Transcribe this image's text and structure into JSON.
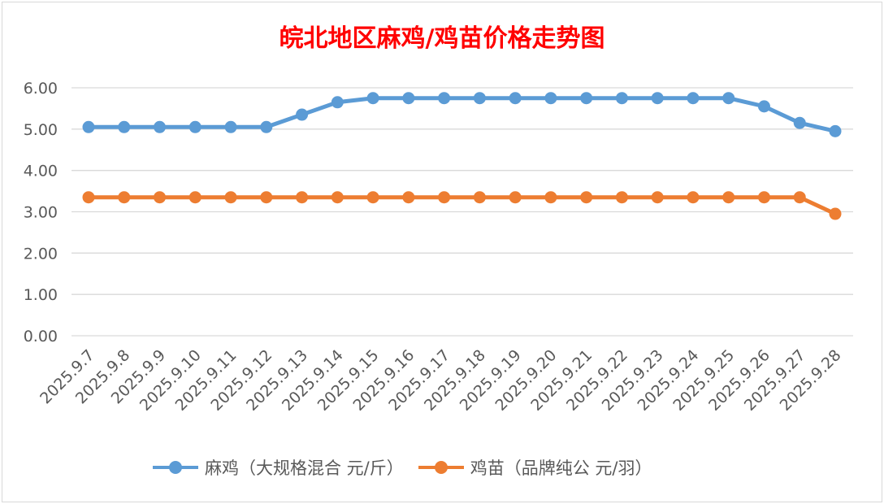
{
  "chart_data": {
    "type": "line",
    "title": "皖北地区麻鸡/鸡苗价格走势图",
    "xlabel": "",
    "ylabel": "",
    "ylim": [
      0,
      6
    ],
    "yticks": [
      "0.00",
      "1.00",
      "2.00",
      "3.00",
      "4.00",
      "5.00",
      "6.00"
    ],
    "grid": true,
    "legend_position": "bottom",
    "categories": [
      "2025.9.7",
      "2025.9.8",
      "2025.9.9",
      "2025.9.10",
      "2025.9.11",
      "2025.9.12",
      "2025.9.13",
      "2025.9.14",
      "2025.9.15",
      "2025.9.16",
      "2025.9.17",
      "2025.9.18",
      "2025.9.19",
      "2025.9.20",
      "2025.9.21",
      "2025.9.22",
      "2025.9.23",
      "2025.9.24",
      "2025.9.25",
      "2025.9.26",
      "2025.9.27",
      "2025.9.28"
    ],
    "series": [
      {
        "name": "麻鸡（大规格混合 元/斤）",
        "color": "#5b9bd5",
        "values": [
          5.05,
          5.05,
          5.05,
          5.05,
          5.05,
          5.05,
          5.35,
          5.65,
          5.75,
          5.75,
          5.75,
          5.75,
          5.75,
          5.75,
          5.75,
          5.75,
          5.75,
          5.75,
          5.75,
          5.55,
          5.15,
          4.95
        ]
      },
      {
        "name": "鸡苗（品牌纯公 元/羽）",
        "color": "#ed7d31",
        "values": [
          3.35,
          3.35,
          3.35,
          3.35,
          3.35,
          3.35,
          3.35,
          3.35,
          3.35,
          3.35,
          3.35,
          3.35,
          3.35,
          3.35,
          3.35,
          3.35,
          3.35,
          3.35,
          3.35,
          3.35,
          3.35,
          2.95
        ]
      }
    ]
  }
}
